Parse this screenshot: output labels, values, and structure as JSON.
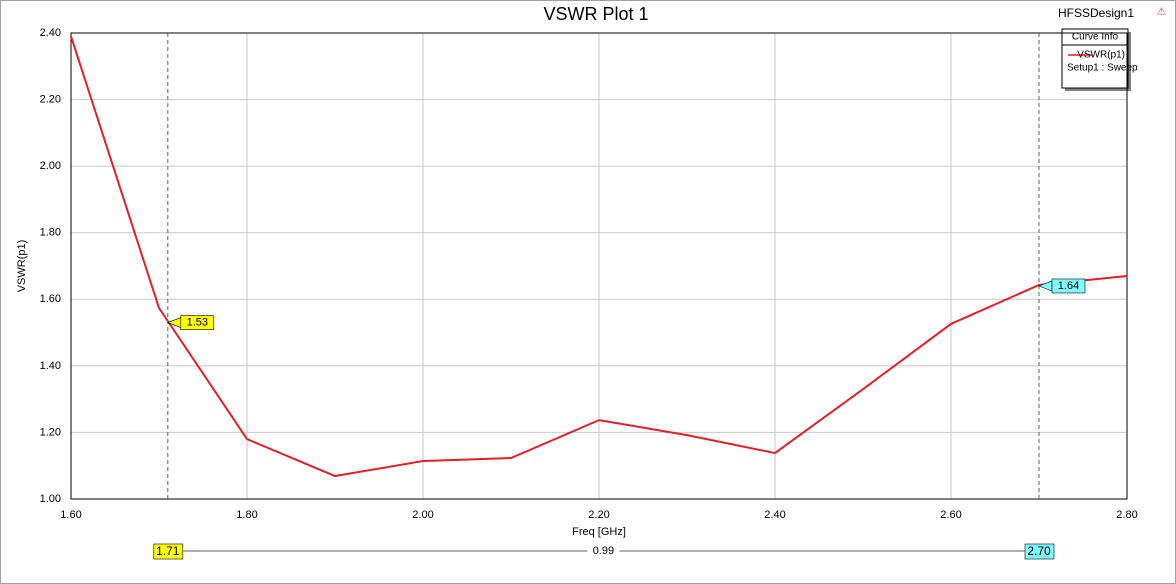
{
  "chart_data": {
    "type": "line",
    "title": "VSWR Plot 1",
    "design_name": "HFSSDesign1",
    "x_label": "Freq [GHz]",
    "y_label": "VSWR(p1)",
    "x": [
      1.6,
      1.7,
      1.8,
      1.9,
      2.0,
      2.1,
      2.2,
      2.3,
      2.4,
      2.5,
      2.6,
      2.7,
      2.8
    ],
    "series": [
      {
        "name": "VSWR(p1)",
        "context": "Setup1 : Sweep",
        "color": "#e0202a",
        "values": [
          2.39,
          1.574,
          1.18,
          1.069,
          1.114,
          1.123,
          1.237,
          1.192,
          1.138,
          1.33,
          1.526,
          1.643,
          1.67
        ]
      }
    ],
    "legend_title": "Curve Info",
    "xlim": [
      1.6,
      2.8
    ],
    "xticks": [
      {
        "value": 1.6,
        "label": "1.60"
      },
      {
        "value": 1.8,
        "label": "1.80"
      },
      {
        "value": 2.0,
        "label": "2.00"
      },
      {
        "value": 2.2,
        "label": "2.20"
      },
      {
        "value": 2.4,
        "label": "2.40"
      },
      {
        "value": 2.6,
        "label": "2.60"
      },
      {
        "value": 2.8,
        "label": "2.80"
      }
    ],
    "ylim": [
      1.0,
      2.4
    ],
    "yticks": [
      {
        "value": 1.0,
        "label": "1.00"
      },
      {
        "value": 1.2,
        "label": "1.20"
      },
      {
        "value": 1.4,
        "label": "1.40"
      },
      {
        "value": 1.6,
        "label": "1.60"
      },
      {
        "value": 1.8,
        "label": "1.80"
      },
      {
        "value": 2.0,
        "label": "2.00"
      },
      {
        "value": 2.2,
        "label": "2.20"
      },
      {
        "value": 2.4,
        "label": "2.40"
      }
    ],
    "grid": true,
    "markers": [
      {
        "x": 1.71,
        "y": 1.53,
        "color": "#ffff00"
      },
      {
        "x": {
          "value": 2.7,
          "label": "2.70"
        },
        "y": 1.64,
        "color": "#80ffff"
      }
    ],
    "marker_delta": 0.99
  }
}
